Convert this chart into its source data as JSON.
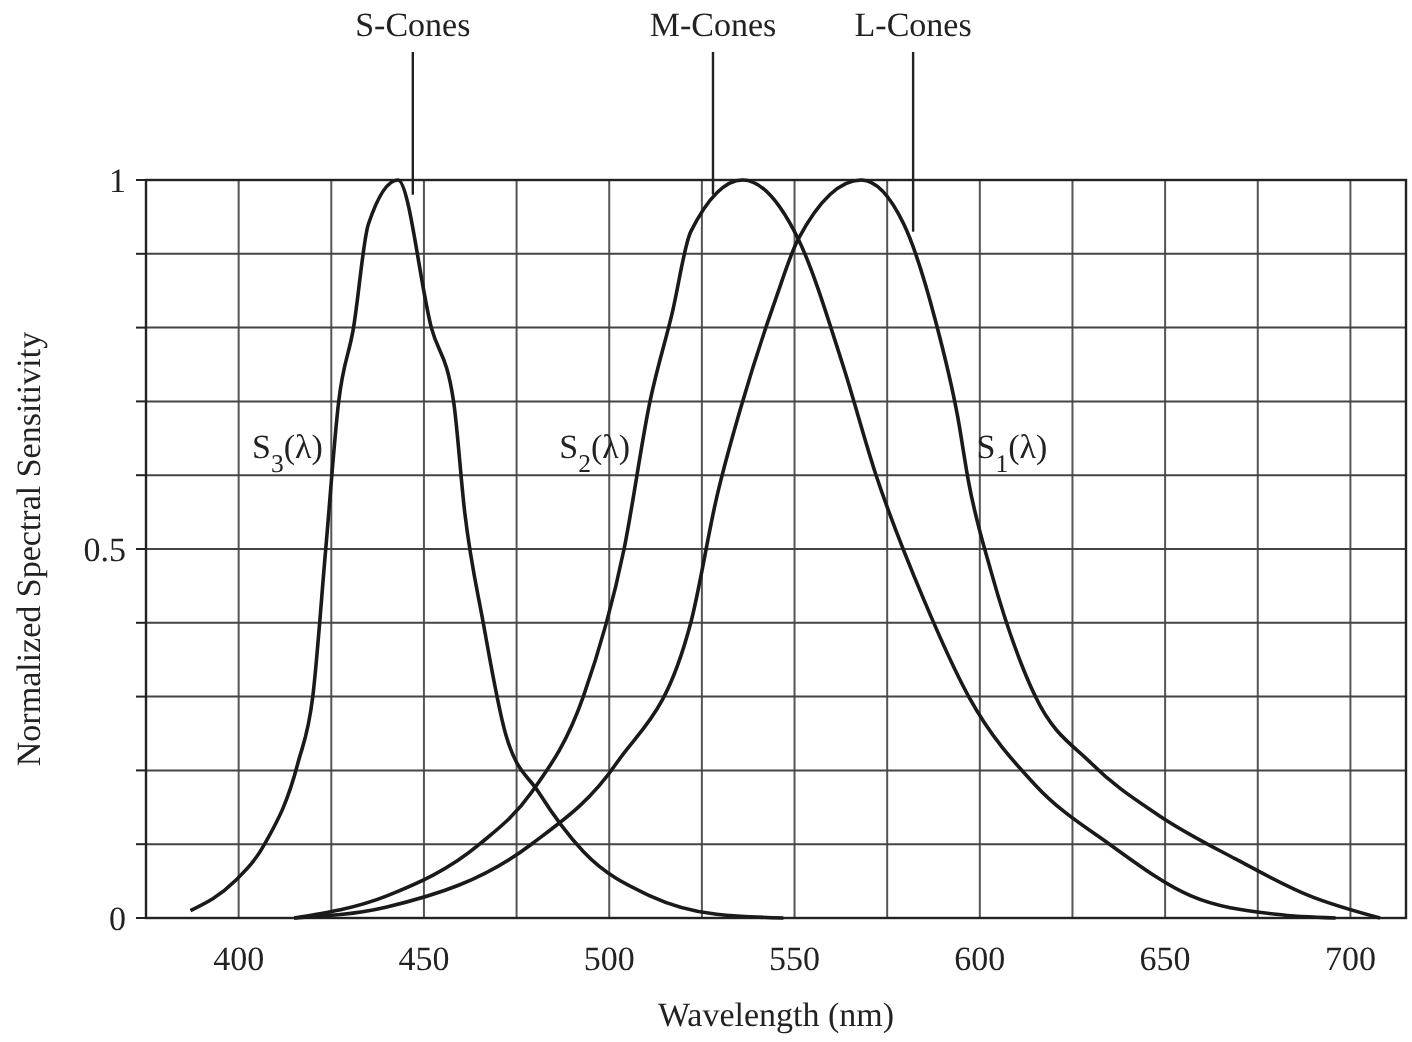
{
  "chart_data": {
    "type": "line",
    "xlabel": "Wavelength (nm)",
    "ylabel": "Normalized Spectral Sensitivity",
    "xlim": [
      375,
      715
    ],
    "ylim": [
      0,
      1
    ],
    "xticks": [
      400,
      {
        "value": 425,
        "label": null
      },
      450,
      {
        "value": 475,
        "label": null
      },
      500,
      {
        "value": 525,
        "label": null
      },
      550,
      {
        "value": 575,
        "label": null
      },
      600,
      {
        "value": 625,
        "label": null
      },
      650,
      {
        "value": 675,
        "label": null
      },
      700
    ],
    "yticks": [
      0,
      {
        "value": 0.1,
        "label": null
      },
      {
        "value": 0.2,
        "label": null
      },
      {
        "value": 0.3,
        "label": null
      },
      {
        "value": 0.4,
        "label": null
      },
      0.5,
      {
        "value": 0.6,
        "label": null
      },
      {
        "value": 0.7,
        "label": null
      },
      {
        "value": 0.8,
        "label": null
      },
      {
        "value": 0.9,
        "label": null
      },
      1
    ],
    "grid": true,
    "marker": "none",
    "line_style": "solid",
    "series": [
      {
        "name": "S$_{3}$(λ)",
        "color": "#1a1a1a",
        "x": [
          387,
          399,
          407,
          416,
          420,
          423.5,
          427,
          431,
          435,
          443,
          452,
          458,
          461,
          466,
          472,
          481,
          493,
          511,
          529,
          547
        ],
        "values": [
          0.01,
          0.05,
          0.1,
          0.21,
          0.3,
          0.5,
          0.7,
          0.8,
          0.94,
          1.0,
          0.8,
          0.7,
          0.55,
          0.4,
          0.25,
          0.17,
          0.09,
          0.03,
          0.005,
          0
        ]
      },
      {
        "name": "S$_{2}$(λ)",
        "color": "#1a1a1a",
        "x": [
          415,
          440,
          465,
          479,
          493,
          504,
          511,
          517,
          522,
          536,
          551,
          563,
          572,
          585,
          597,
          615,
          635,
          657,
          680,
          696
        ],
        "values": [
          0,
          0.03,
          0.1,
          0.17,
          0.3,
          0.5,
          0.7,
          0.82,
          0.93,
          1.0,
          0.92,
          0.75,
          0.6,
          0.43,
          0.3,
          0.18,
          0.1,
          0.03,
          0.005,
          0
        ]
      },
      {
        "name": "S$_{1}$(λ)",
        "color": "#1a1a1a",
        "x": [
          415,
          440,
          479,
          502,
          522,
          529,
          536,
          545,
          551,
          568,
          579.5,
          588,
          594,
          597,
          603,
          615,
          630,
          648,
          669,
          689,
          708
        ],
        "values": [
          0,
          0.015,
          0.1,
          0.21,
          0.4,
          0.57,
          0.7,
          0.84,
          0.92,
          1.0,
          0.94,
          0.81,
          0.68,
          0.59,
          0.47,
          0.3,
          0.21,
          0.14,
          0.08,
          0.03,
          0
        ]
      }
    ],
    "annotations": [
      {
        "text": "S-Cones",
        "x": 447,
        "y": 0.98
      },
      {
        "text": "M-Cones",
        "x": 528,
        "y": 0.98
      },
      {
        "text": "L-Cones",
        "x": 582,
        "y": 0.93
      }
    ]
  }
}
